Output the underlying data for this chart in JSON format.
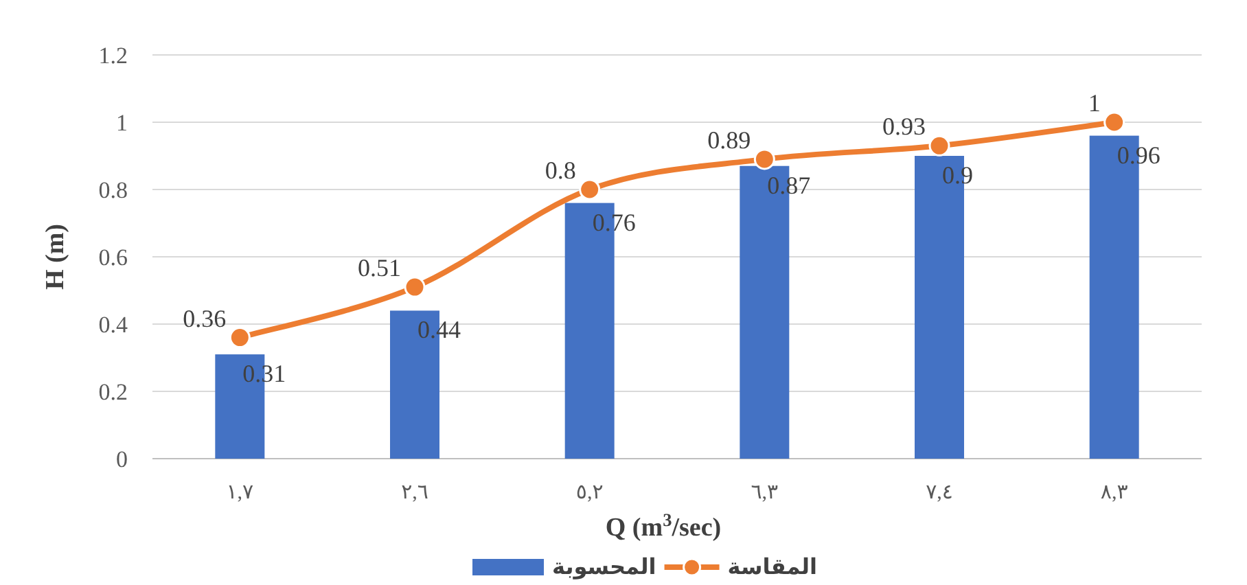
{
  "chart_data": {
    "type": "bar",
    "xlabel": "Q (m$^{3}$/sec)",
    "ylabel": "H (m)",
    "categories": [
      "١,٧",
      "٢,٦",
      "٥,٢",
      "٦,٣",
      "٧,٤",
      "٨,٣"
    ],
    "series": [
      {
        "name": "المحسوبة",
        "color": "#4472c4",
        "values": [
          0.31,
          0.44,
          0.76,
          0.87,
          0.9,
          0.96
        ]
      },
      {
        "name": "المقاسة",
        "type": "line",
        "color": "#ed7d31",
        "marker": "circle",
        "values": [
          0.36,
          0.51,
          0.8,
          0.89,
          0.93,
          1
        ]
      }
    ],
    "ylim": [
      0,
      1.2
    ],
    "yticks": [
      0,
      0.2,
      0.4,
      0.6,
      0.8,
      1,
      1.2
    ],
    "grid": "y",
    "legend": "bottom",
    "data_labels": true
  }
}
